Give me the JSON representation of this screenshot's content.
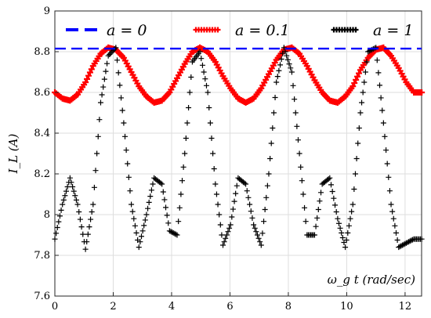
{
  "chart_data": {
    "type": "line",
    "title": "",
    "xlabel": "ω_g t  (rad/sec)",
    "ylabel": "I_L (A)",
    "xlim": [
      0,
      12.566
    ],
    "ylim": [
      7.6,
      9.0
    ],
    "xticks": [
      "0",
      "2",
      "4",
      "6",
      "8",
      "10",
      "12"
    ],
    "yticks": [
      "7.6",
      "7.8",
      "8",
      "8.2",
      "8.4",
      "8.6",
      "8.8",
      "9"
    ],
    "grid": true,
    "legend_placement": "top",
    "series": [
      {
        "name": "a = 0",
        "color": "#0000ff",
        "style": "dashed",
        "x": [
          0,
          12.566
        ],
        "values": [
          8.815,
          8.815
        ]
      },
      {
        "name": "a = 0.1",
        "color": "#ff0000",
        "style": "plus-markers",
        "x": [
          0.0,
          0.26,
          0.52,
          0.78,
          1.05,
          1.31,
          1.57,
          1.83,
          2.09,
          2.36,
          2.62,
          2.88,
          3.14,
          3.4,
          3.67,
          3.93,
          4.19,
          4.45,
          4.71,
          4.97,
          5.24,
          5.5,
          5.76,
          6.02,
          6.28,
          6.54,
          6.81,
          7.07,
          7.33,
          7.59,
          7.85,
          8.12,
          8.38,
          8.64,
          8.9,
          9.16,
          9.42,
          9.69,
          9.95,
          10.21,
          10.47,
          10.73,
          11.0,
          11.26,
          11.52,
          11.78,
          12.04,
          12.3,
          12.57
        ],
        "values": [
          8.6,
          8.57,
          8.56,
          8.59,
          8.65,
          8.73,
          8.79,
          8.82,
          8.81,
          8.77,
          8.7,
          8.63,
          8.58,
          8.55,
          8.56,
          8.6,
          8.67,
          8.74,
          8.8,
          8.82,
          8.8,
          8.75,
          8.68,
          8.62,
          8.57,
          8.55,
          8.57,
          8.62,
          8.69,
          8.76,
          8.81,
          8.82,
          8.79,
          8.73,
          8.66,
          8.6,
          8.56,
          8.55,
          8.58,
          8.63,
          8.71,
          8.77,
          8.81,
          8.82,
          8.78,
          8.72,
          8.65,
          8.6,
          8.6
        ]
      },
      {
        "name": "a = 1",
        "color": "#000000",
        "style": "plus-markers",
        "x": [
          0.0,
          0.26,
          0.52,
          0.78,
          1.05,
          1.31,
          1.57,
          1.83,
          2.09,
          2.36,
          2.62,
          2.88,
          3.14,
          3.4,
          3.67,
          3.93,
          4.19,
          4.45,
          4.71,
          4.97,
          5.24,
          5.5,
          5.76,
          6.02,
          6.28,
          6.54,
          6.81,
          7.07,
          7.33,
          7.59,
          7.85,
          8.12,
          8.38,
          8.64,
          8.9,
          9.16,
          9.42,
          9.69,
          9.95,
          10.21,
          10.47,
          10.73,
          11.0,
          11.26,
          11.52,
          11.78,
          12.04,
          12.3,
          12.57
        ],
        "values": [
          7.88,
          8.05,
          8.18,
          8.05,
          7.83,
          8.05,
          8.55,
          8.78,
          8.82,
          8.45,
          8.05,
          7.84,
          8.0,
          8.18,
          8.15,
          7.92,
          7.9,
          8.3,
          8.75,
          8.8,
          8.6,
          8.15,
          7.85,
          7.95,
          8.18,
          8.15,
          7.95,
          7.85,
          8.2,
          8.65,
          8.82,
          8.7,
          8.3,
          7.9,
          7.9,
          8.15,
          8.18,
          7.98,
          7.84,
          8.05,
          8.5,
          8.8,
          8.82,
          8.45,
          8.05,
          7.84,
          7.86,
          7.88,
          7.88
        ]
      }
    ]
  }
}
